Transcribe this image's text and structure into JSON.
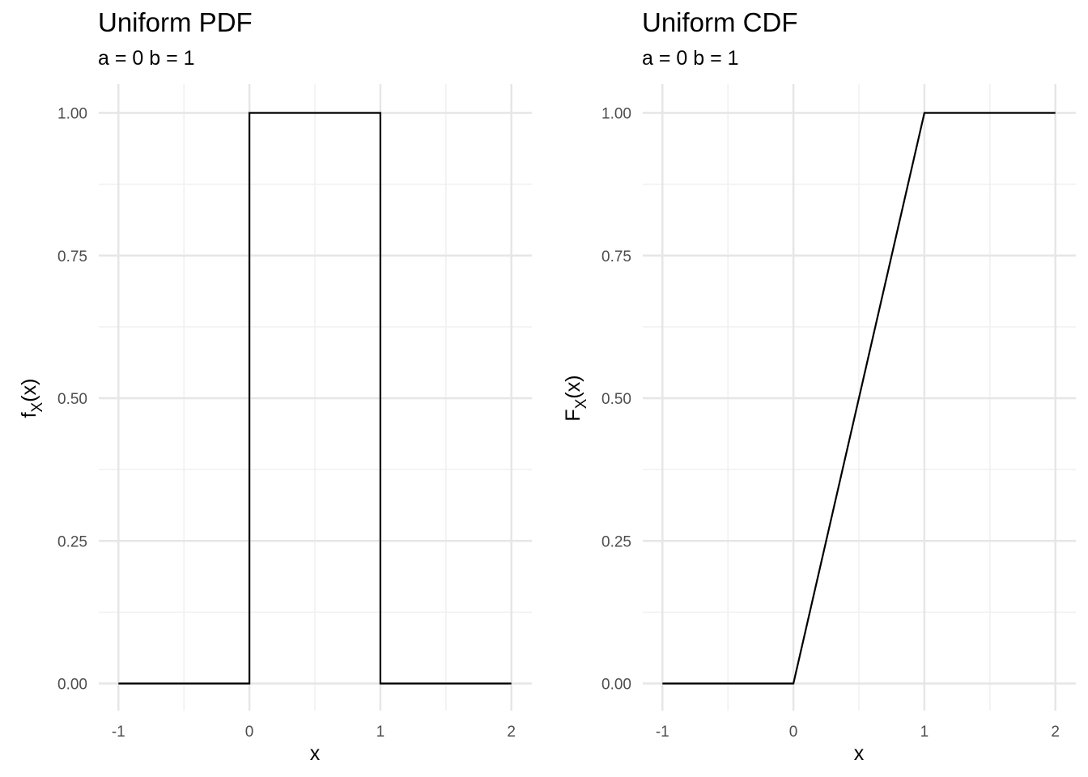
{
  "chart_data": [
    {
      "type": "line",
      "title": "Uniform PDF",
      "subtitle": "a = 0 b = 1",
      "xlabel": "x",
      "ylabel": {
        "main": "f",
        "sub": "X",
        "tail": "(x)"
      },
      "xlim": [
        -1,
        2
      ],
      "ylim": [
        0,
        1
      ],
      "x_ticks": [
        -1,
        0,
        1,
        2
      ],
      "x_tick_labels": [
        "-1",
        "0",
        "1",
        "2"
      ],
      "y_ticks": [
        0,
        0.25,
        0.5,
        0.75,
        1
      ],
      "y_tick_labels": [
        "0.00",
        "0.25",
        "0.50",
        "0.75",
        "1.00"
      ],
      "grid": true,
      "series": [
        {
          "x": [
            -1,
            0,
            0,
            1,
            1,
            2
          ],
          "y": [
            0,
            0,
            1,
            1,
            0,
            0
          ]
        }
      ]
    },
    {
      "type": "line",
      "title": "Uniform CDF",
      "subtitle": "a = 0 b = 1",
      "xlabel": "x",
      "ylabel": {
        "main": "F",
        "sub": "X",
        "tail": "(x)"
      },
      "xlim": [
        -1,
        2
      ],
      "ylim": [
        0,
        1
      ],
      "x_ticks": [
        -1,
        0,
        1,
        2
      ],
      "x_tick_labels": [
        "-1",
        "0",
        "1",
        "2"
      ],
      "y_ticks": [
        0,
        0.25,
        0.5,
        0.75,
        1
      ],
      "y_tick_labels": [
        "0.00",
        "0.25",
        "0.50",
        "0.75",
        "1.00"
      ],
      "grid": true,
      "series": [
        {
          "x": [
            -1,
            0,
            1,
            2
          ],
          "y": [
            0,
            0,
            1,
            1
          ]
        }
      ]
    }
  ],
  "colors": {
    "line": "#000000",
    "grid_major": "#e6e6e6",
    "grid_minor": "#f0f0f0",
    "tick_text": "#4d4d4d"
  }
}
